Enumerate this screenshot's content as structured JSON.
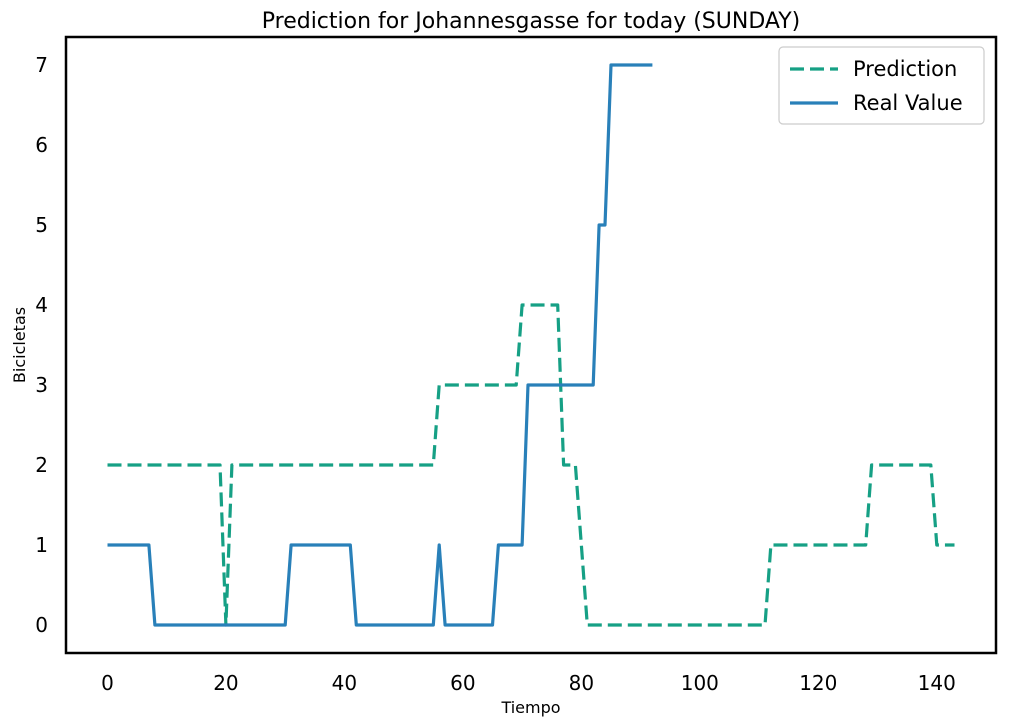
{
  "chart_data": {
    "type": "line",
    "title": "Prediction for Johannesgasse for today (SUNDAY)",
    "xlabel": "Tiempo",
    "ylabel": "Bicicletas",
    "xlim": [
      -7,
      150
    ],
    "ylim": [
      -0.35,
      7.35
    ],
    "xticks": [
      0,
      20,
      40,
      60,
      80,
      100,
      120,
      140
    ],
    "yticks": [
      0,
      1,
      2,
      3,
      4,
      5,
      6,
      7
    ],
    "grid": false,
    "legend_position": "top-right",
    "series": [
      {
        "name": "Prediction",
        "color": "#16a085",
        "style": "dashed",
        "x": [
          0,
          19,
          20,
          21,
          55,
          56,
          69,
          70,
          76,
          77,
          78,
          79,
          81,
          111,
          112,
          128,
          129,
          139,
          140,
          143
        ],
        "y": [
          2,
          2,
          0,
          2,
          2,
          3,
          3,
          4,
          4,
          2,
          2,
          2,
          0,
          0,
          1,
          1,
          2,
          2,
          1,
          1
        ]
      },
      {
        "name": "Real Value",
        "color": "#2980b9",
        "style": "solid",
        "x": [
          0,
          7,
          8,
          20,
          30,
          31,
          41,
          42,
          55,
          56,
          57,
          65,
          66,
          70,
          71,
          82,
          83,
          84,
          85,
          92
        ],
        "y": [
          1,
          1,
          0,
          0,
          0,
          1,
          1,
          0,
          0,
          1,
          0,
          0,
          1,
          1,
          3,
          3,
          5,
          5,
          7,
          7
        ]
      }
    ]
  }
}
